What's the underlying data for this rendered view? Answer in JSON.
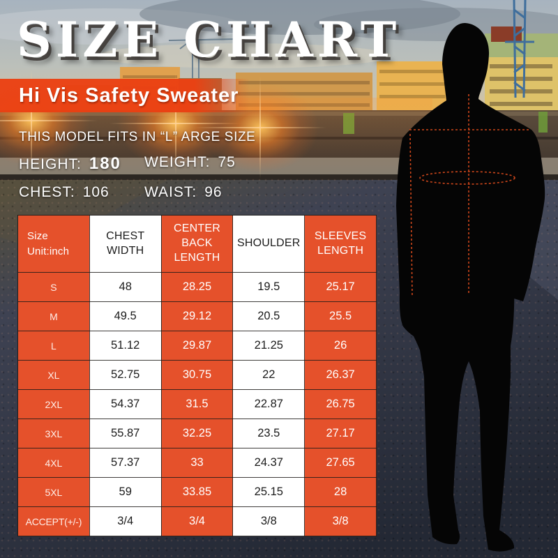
{
  "title": "SIZE CHART",
  "banner": {
    "label": "Hi Vis Safety Sweater"
  },
  "model_info": {
    "fits_line": "THIS MODEL FITS IN “L” ARGE SIZE",
    "stats": [
      {
        "label": "HEIGHT:",
        "value": "180",
        "bold": true
      },
      {
        "label": "WEIGHT:",
        "value": "75",
        "bold": false
      },
      {
        "label": "CHEST:",
        "value": "106",
        "bold": false
      },
      {
        "label": "WAIST:",
        "value": "96",
        "bold": false
      }
    ]
  },
  "chart_data": {
    "type": "table",
    "title": "SIZE CHART",
    "corner_header": [
      "Size",
      "Unit:inch"
    ],
    "columns": [
      "CHEST WIDTH",
      "CENTER BACK LENGTH",
      "SHOULDER",
      "SLEEVES LENGTH"
    ],
    "rows": [
      {
        "size": "S",
        "values": [
          "48",
          "28.25",
          "19.5",
          "25.17"
        ]
      },
      {
        "size": "M",
        "values": [
          "49.5",
          "29.12",
          "20.5",
          "25.5"
        ]
      },
      {
        "size": "L",
        "values": [
          "51.12",
          "29.87",
          "21.25",
          "26"
        ]
      },
      {
        "size": "XL",
        "values": [
          "52.75",
          "30.75",
          "22",
          "26.37"
        ]
      },
      {
        "size": "2XL",
        "values": [
          "54.37",
          "31.5",
          "22.87",
          "26.75"
        ]
      },
      {
        "size": "3XL",
        "values": [
          "55.87",
          "32.25",
          "23.5",
          "27.17"
        ]
      },
      {
        "size": "4XL",
        "values": [
          "57.37",
          "33",
          "24.37",
          "27.65"
        ]
      },
      {
        "size": "5XL",
        "values": [
          "59",
          "33.85",
          "25.15",
          "28"
        ]
      },
      {
        "size": "ACCEPT(+/-)",
        "values": [
          "3/4",
          "3/4",
          "3/8",
          "3/8"
        ]
      }
    ]
  },
  "colors": {
    "table_orange": "#e5512b",
    "banner_orange": "#eb4012",
    "measure_dash": "#d94a1c",
    "title_white": "#ffffff"
  }
}
